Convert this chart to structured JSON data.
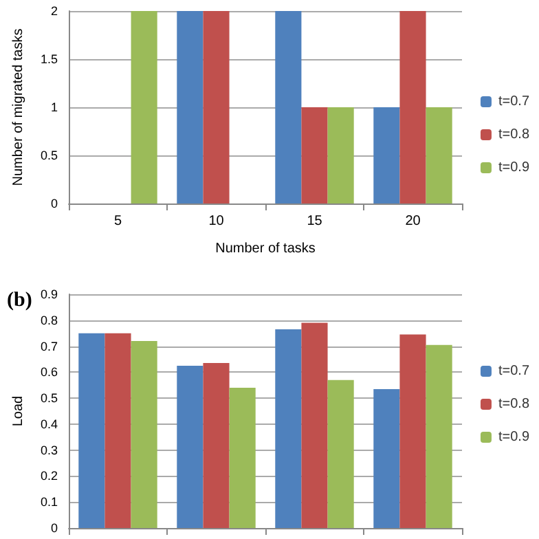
{
  "chart_data": [
    {
      "type": "bar",
      "categories": [
        "5",
        "10",
        "15",
        "20"
      ],
      "xlabel": "Number of tasks",
      "ylabel": "Number of migrated tasks",
      "ylim": [
        0,
        2
      ],
      "yticks": [
        0,
        0.5,
        1,
        1.5,
        2
      ],
      "grid": "y",
      "legend": "right",
      "series": [
        {
          "name": "t=0.7",
          "color": "#4f81bd",
          "values": [
            0,
            2,
            2,
            1
          ]
        },
        {
          "name": "t=0.8",
          "color": "#c0504d",
          "values": [
            0,
            2,
            1,
            2
          ]
        },
        {
          "name": "t=0.9",
          "color": "#9bbb59",
          "values": [
            2,
            0,
            1,
            1
          ]
        }
      ]
    },
    {
      "type": "bar",
      "title": "(b)",
      "categories": [
        null,
        null,
        null,
        null
      ],
      "ylabel": "Load",
      "ylim": [
        0,
        0.9
      ],
      "yticks": [
        0,
        0.1,
        0.2,
        0.3,
        0.4,
        0.5,
        0.6,
        0.7,
        0.8,
        0.9
      ],
      "grid": "y",
      "legend": "right",
      "series": [
        {
          "name": "t=0.7",
          "color": "#4f81bd",
          "values": [
            0.75,
            0.625,
            0.765,
            0.535
          ]
        },
        {
          "name": "t=0.8",
          "color": "#c0504d",
          "values": [
            0.75,
            0.635,
            0.79,
            0.745
          ]
        },
        {
          "name": "t=0.9",
          "color": "#9bbb59",
          "values": [
            0.72,
            0.54,
            0.57,
            0.705
          ]
        }
      ]
    }
  ]
}
